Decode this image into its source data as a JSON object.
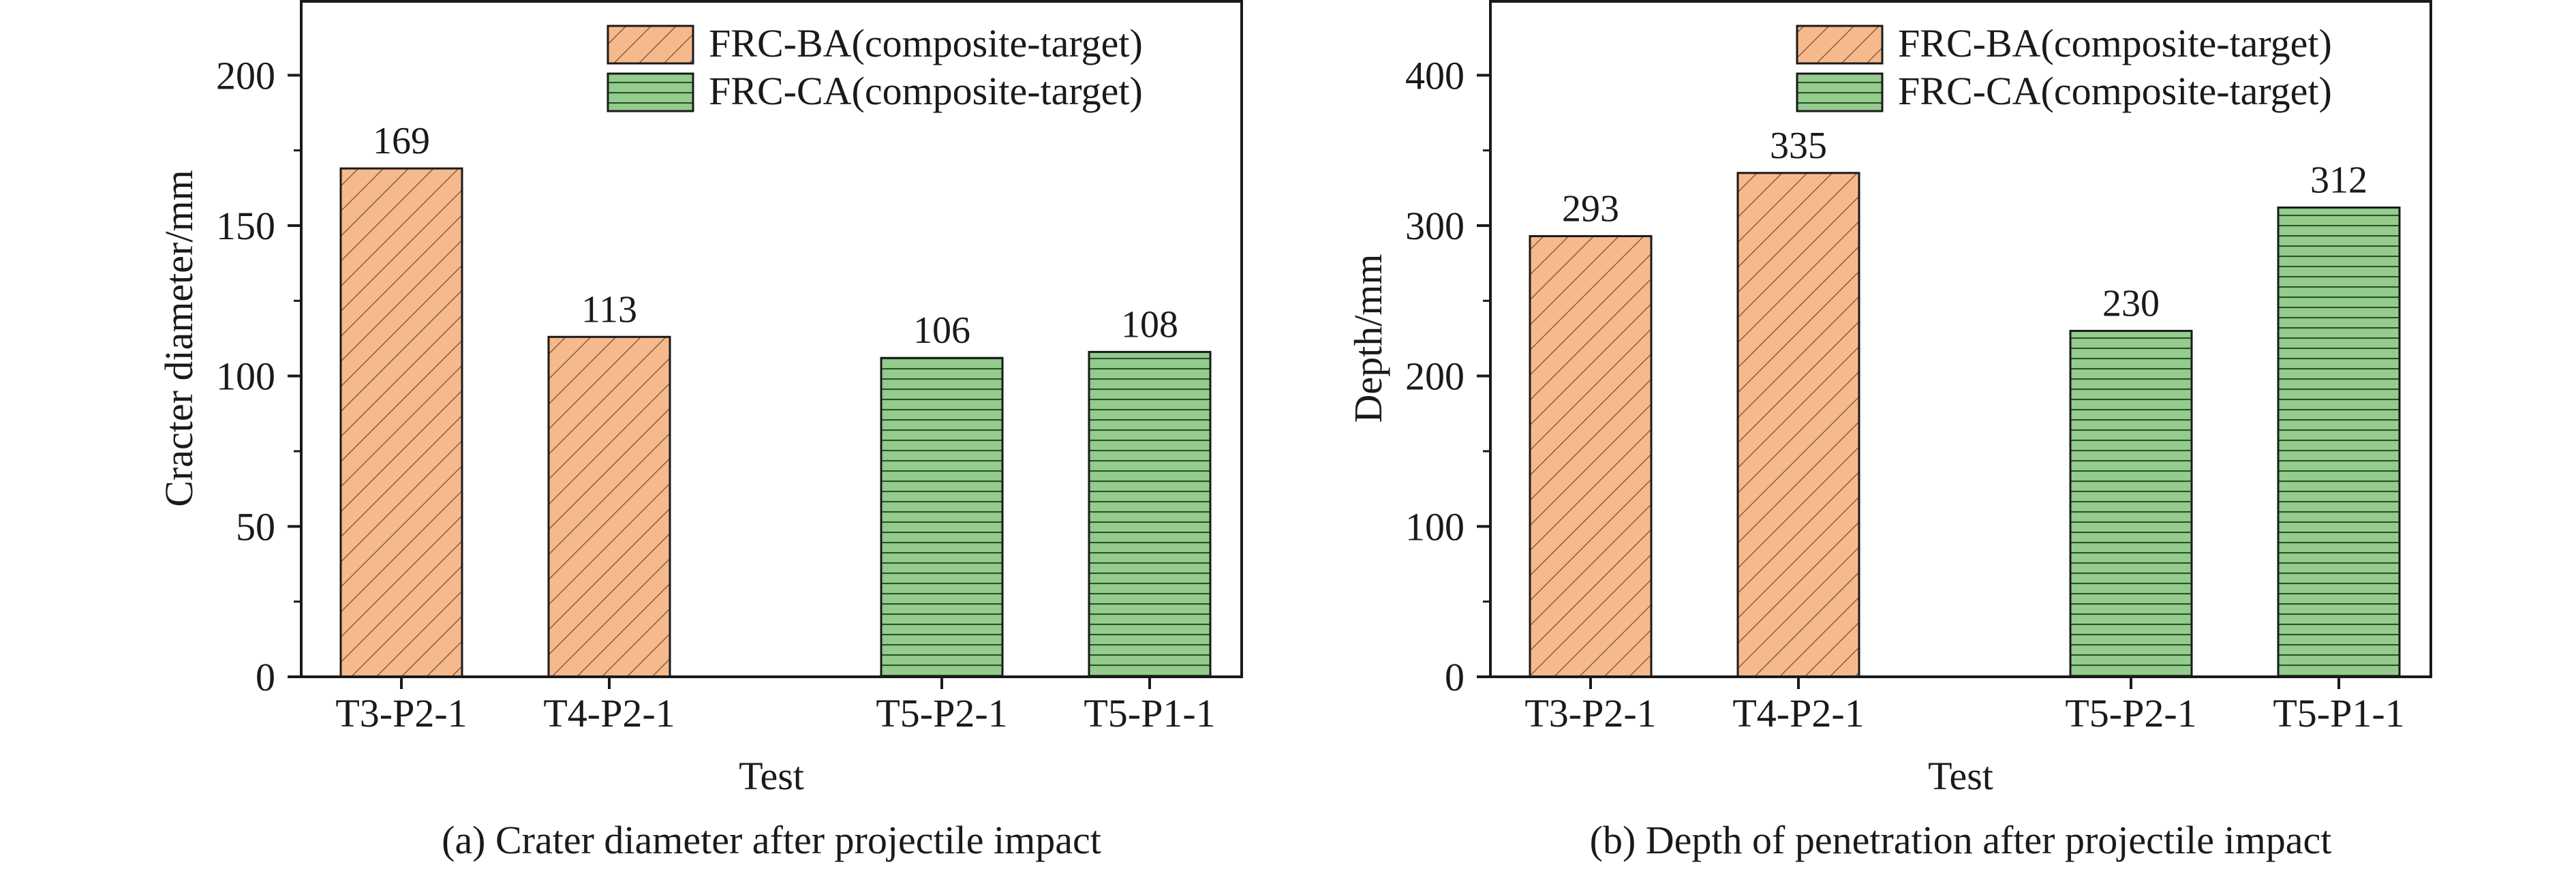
{
  "colors": {
    "ba_fill": "#f6b98c",
    "ca_fill": "#93cc8c",
    "stroke": "#1a1a1a"
  },
  "chart_data": [
    {
      "type": "bar",
      "caption": "(a) Crater diameter after projectile impact",
      "xlabel": "Test",
      "ylabel": "Cracter diameter/mm",
      "ylim": [
        0,
        225
      ],
      "yticks": [
        0,
        50,
        100,
        150,
        200
      ],
      "categories": [
        "T3-P2-1",
        "T4-P2-1",
        "T5-P2-1",
        "T5-P1-1"
      ],
      "category_slots": [
        0,
        1,
        2.6,
        3.6
      ],
      "series_index": [
        0,
        0,
        1,
        1
      ],
      "values": [
        169,
        113,
        106,
        108
      ],
      "data_labels": [
        "169",
        "113",
        "106",
        "108"
      ],
      "legend": [
        {
          "name": "FRC-BA(composite-target)",
          "pattern": "diagonal-hatch"
        },
        {
          "name": "FRC-CA(composite-target)",
          "pattern": "horizontal-lines"
        }
      ],
      "legend_position": "top-right",
      "grid": false
    },
    {
      "type": "bar",
      "caption": "(b) Depth of penetration after projectile impact",
      "xlabel": "Test",
      "ylabel": "Depth/mm",
      "ylim": [
        0,
        450
      ],
      "yticks": [
        0,
        100,
        200,
        300,
        400
      ],
      "categories": [
        "T3-P2-1",
        "T4-P2-1",
        "T5-P2-1",
        "T5-P1-1"
      ],
      "category_slots": [
        0,
        1,
        2.6,
        3.6
      ],
      "series_index": [
        0,
        0,
        1,
        1
      ],
      "values": [
        293,
        335,
        230,
        312
      ],
      "data_labels": [
        "293",
        "335",
        "230",
        "312"
      ],
      "legend": [
        {
          "name": "FRC-BA(composite-target)",
          "pattern": "diagonal-hatch"
        },
        {
          "name": "FRC-CA(composite-target)",
          "pattern": "horizontal-lines"
        }
      ],
      "legend_position": "top-right",
      "grid": false
    }
  ]
}
